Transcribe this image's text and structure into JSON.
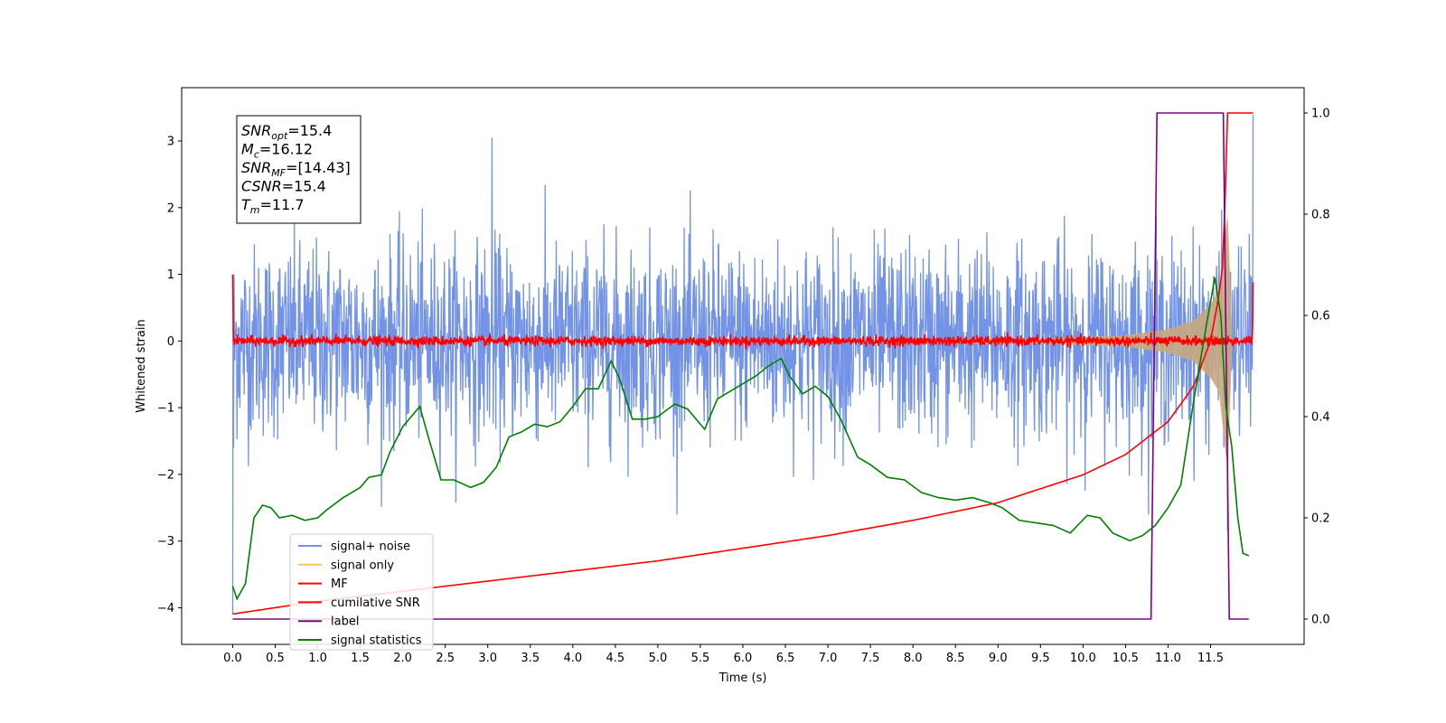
{
  "chart_data": {
    "type": "line",
    "xlabel": "Time (s)",
    "ylabel_left": "Whitened strain",
    "xlim": [
      -0.6,
      12.6
    ],
    "ylim_left": [
      -4.55,
      3.8
    ],
    "ylim_right": [
      -0.05,
      1.05
    ],
    "x_ticks": [
      "0.0",
      "0.5",
      "1.0",
      "1.5",
      "2.0",
      "2.5",
      "3.0",
      "3.5",
      "4.0",
      "4.5",
      "5.0",
      "5.5",
      "6.0",
      "6.5",
      "7.0",
      "7.5",
      "8.0",
      "8.5",
      "9.0",
      "9.5",
      "10.0",
      "10.5",
      "11.0",
      "11.5"
    ],
    "y_ticks_left": [
      {
        "value": 3,
        "label": "3"
      },
      {
        "value": 2,
        "label": "2"
      },
      {
        "value": 1,
        "label": "1"
      },
      {
        "value": 0,
        "label": "0"
      },
      {
        "value": -1,
        "label": "−1"
      },
      {
        "value": -2,
        "label": "−2"
      },
      {
        "value": -3,
        "label": "−3"
      },
      {
        "value": -4,
        "label": "−4"
      }
    ],
    "y_ticks_right": [
      "0.0",
      "0.2",
      "0.4",
      "0.6",
      "0.8",
      "1.0"
    ],
    "grid": false,
    "legend_position": "lower-left",
    "stats_box": [
      {
        "sym": "SNR",
        "sub": "opt",
        "value": "=15.4"
      },
      {
        "sym": "M",
        "sub": "c",
        "value": "=16.12"
      },
      {
        "sym": "SNR",
        "sub": "MF",
        "value": "=[14.43]"
      },
      {
        "sym": "CSNR",
        "sub": "",
        "value": "=15.4"
      },
      {
        "sym": "T",
        "sub": "m",
        "value": "=11.7"
      }
    ],
    "series": [
      {
        "name": "signal+ noise",
        "axis": "left",
        "color": "#7393e6",
        "kind": "noise",
        "typical_amplitude": 1.3,
        "peak_max": 3.05,
        "peak_min": -2.85,
        "x_range": [
          0,
          12.0
        ]
      },
      {
        "name": "signal only",
        "axis": "left",
        "color": "#f2c65f",
        "kind": "chirp",
        "x": [
          0,
          9.5,
          10.5,
          11.0,
          11.3,
          11.5,
          11.6,
          11.7,
          11.75
        ],
        "envelope": [
          0.01,
          0.03,
          0.08,
          0.17,
          0.3,
          0.55,
          0.75,
          1.9,
          0.1
        ]
      },
      {
        "name": "MF",
        "axis": "left",
        "color": "#ff0000",
        "kind": "noise",
        "typical_amplitude": 0.08,
        "x_range": [
          0,
          12.0
        ],
        "start_value": 1.0,
        "end_value": 0.88
      },
      {
        "name": "cumilative SNR",
        "axis": "right",
        "color": "#ff0000",
        "x": [
          0,
          1,
          2,
          3,
          4,
          5,
          6,
          7,
          8,
          9,
          10,
          10.5,
          11,
          11.3,
          11.5,
          11.6,
          11.65,
          11.7,
          11.75,
          12.0
        ],
        "y": [
          0.01,
          0.035,
          0.055,
          0.075,
          0.095,
          0.115,
          0.14,
          0.165,
          0.195,
          0.23,
          0.285,
          0.325,
          0.39,
          0.46,
          0.55,
          0.64,
          0.71,
          1.0,
          1.0,
          1.0
        ]
      },
      {
        "name": "label",
        "axis": "right",
        "color": "#800080",
        "x": [
          0,
          10.8,
          10.87,
          11.65,
          11.72,
          11.95
        ],
        "y": [
          0,
          0,
          1,
          1,
          0,
          0
        ]
      },
      {
        "name": "signal statistics",
        "axis": "right",
        "color": "#008000",
        "x": [
          0,
          0.05,
          0.15,
          0.25,
          0.35,
          0.45,
          0.55,
          0.7,
          0.85,
          1.0,
          1.1,
          1.3,
          1.5,
          1.6,
          1.75,
          1.85,
          2.0,
          2.1,
          2.2,
          2.3,
          2.45,
          2.6,
          2.8,
          2.95,
          3.1,
          3.25,
          3.4,
          3.55,
          3.7,
          3.85,
          4.0,
          4.15,
          4.3,
          4.45,
          4.55,
          4.7,
          4.85,
          5.0,
          5.2,
          5.35,
          5.55,
          5.7,
          5.9,
          6.0,
          6.15,
          6.3,
          6.45,
          6.55,
          6.7,
          6.85,
          7.0,
          7.15,
          7.35,
          7.5,
          7.7,
          7.9,
          8.1,
          8.3,
          8.5,
          8.7,
          8.9,
          9.05,
          9.25,
          9.45,
          9.65,
          9.85,
          10.05,
          10.2,
          10.35,
          10.55,
          10.7,
          10.85,
          11.0,
          11.15,
          11.3,
          11.45,
          11.55,
          11.62,
          11.68,
          11.75,
          11.82,
          11.88,
          11.95
        ],
        "y": [
          0.065,
          0.04,
          0.07,
          0.2,
          0.225,
          0.22,
          0.2,
          0.205,
          0.195,
          0.2,
          0.215,
          0.24,
          0.26,
          0.28,
          0.285,
          0.33,
          0.38,
          0.4,
          0.42,
          0.36,
          0.275,
          0.275,
          0.26,
          0.27,
          0.3,
          0.36,
          0.37,
          0.385,
          0.38,
          0.39,
          0.42,
          0.455,
          0.455,
          0.51,
          0.475,
          0.395,
          0.395,
          0.4,
          0.425,
          0.415,
          0.375,
          0.435,
          0.455,
          0.465,
          0.48,
          0.5,
          0.515,
          0.48,
          0.445,
          0.46,
          0.44,
          0.395,
          0.32,
          0.305,
          0.28,
          0.275,
          0.25,
          0.24,
          0.235,
          0.24,
          0.23,
          0.22,
          0.195,
          0.19,
          0.185,
          0.17,
          0.205,
          0.2,
          0.17,
          0.155,
          0.165,
          0.185,
          0.22,
          0.265,
          0.43,
          0.58,
          0.675,
          0.6,
          0.42,
          0.34,
          0.2,
          0.13,
          0.125
        ]
      }
    ]
  }
}
